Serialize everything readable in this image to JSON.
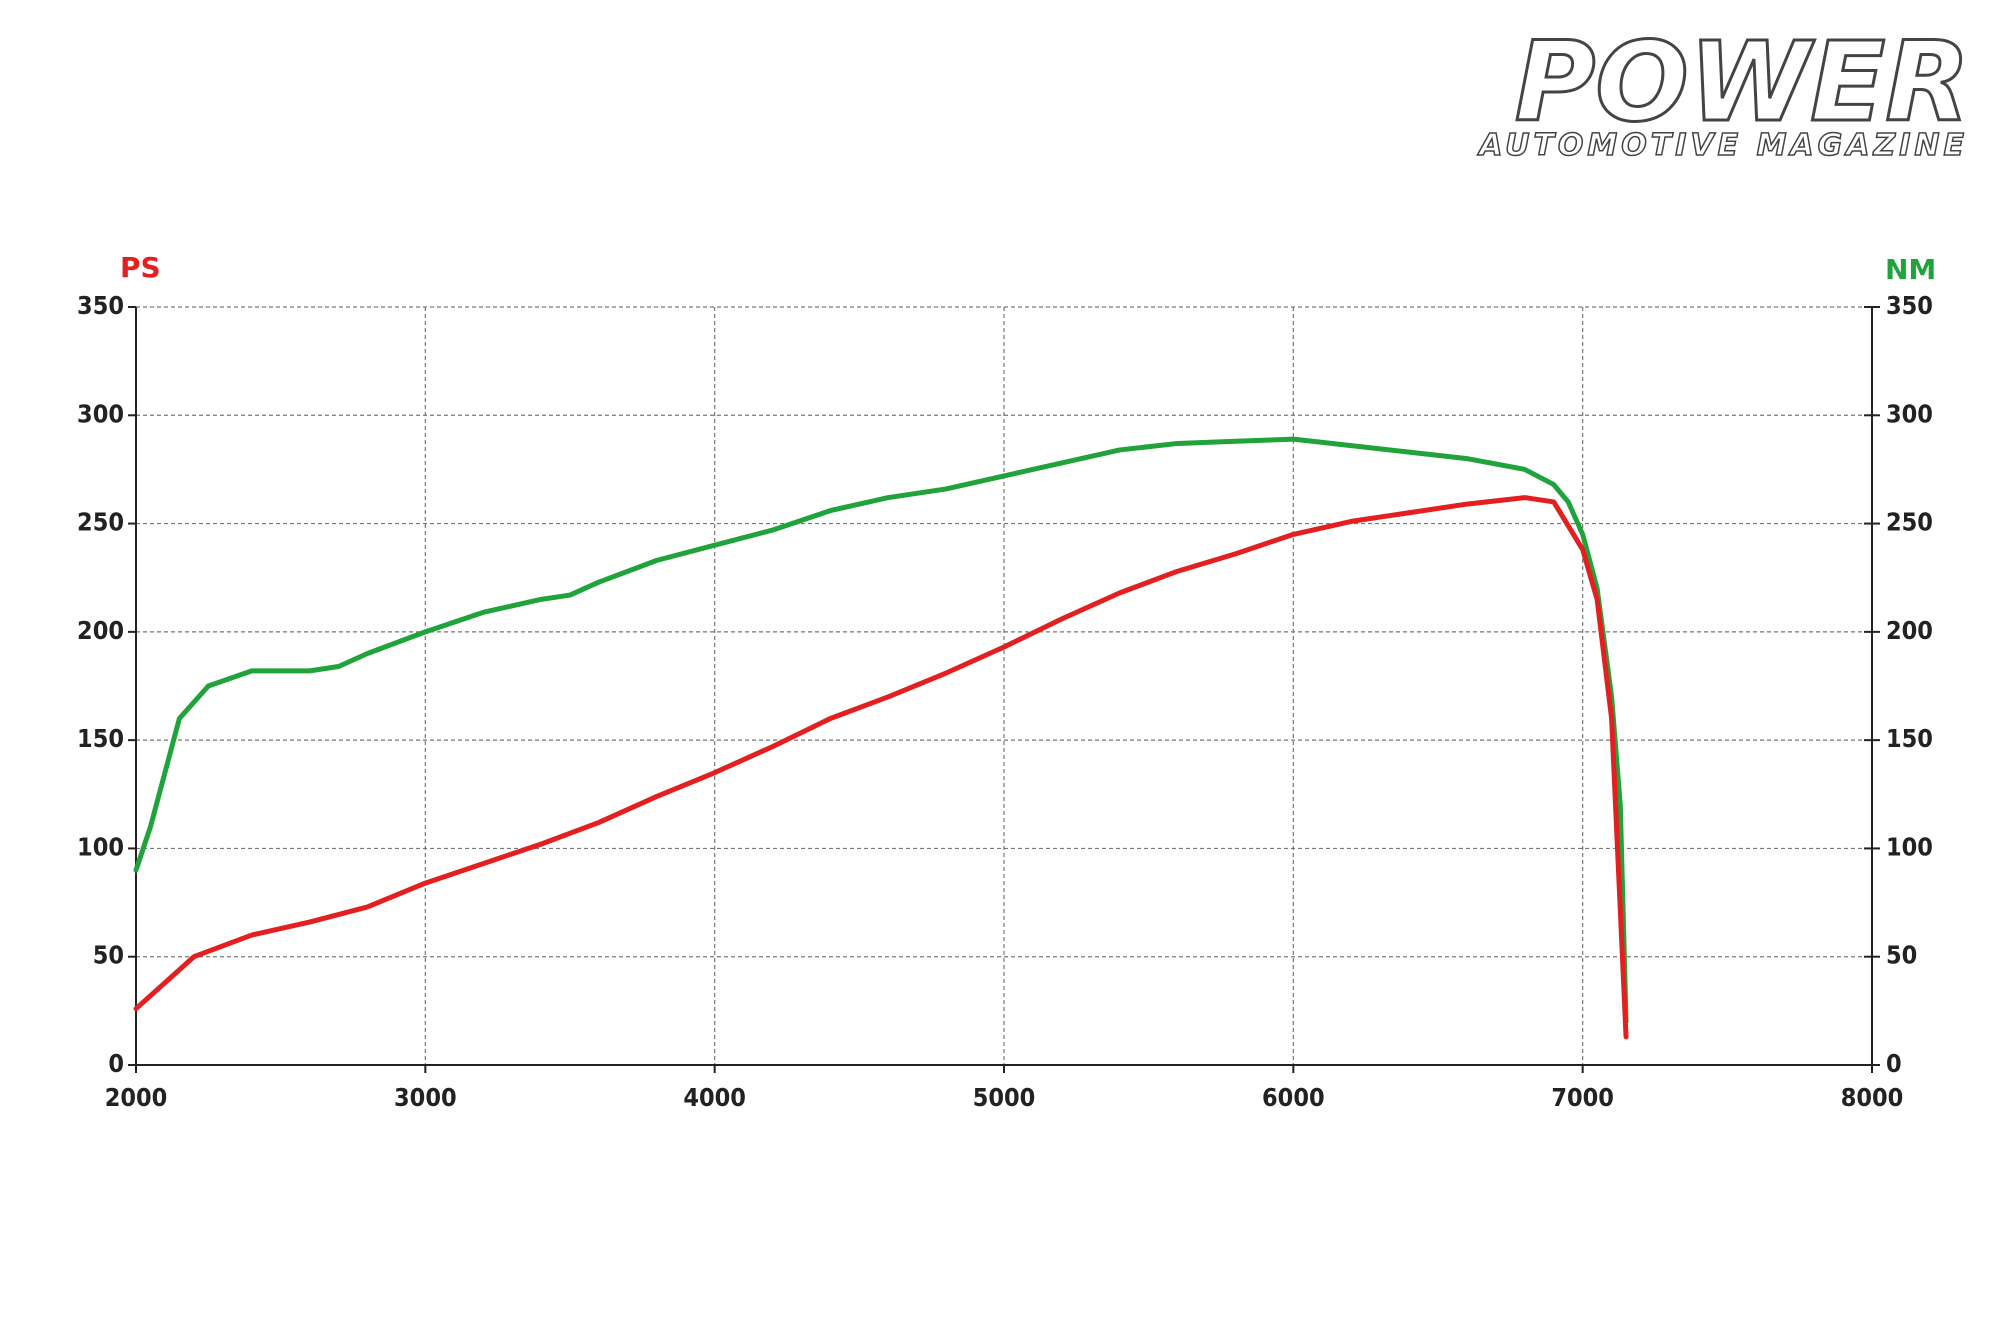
{
  "brand": {
    "name": "POWER",
    "tagline": "AUTOMOTIVE MAGAZINE"
  },
  "chart_data": {
    "type": "line",
    "ylabel": "PS",
    "y2label": "NM",
    "xlim": [
      2000,
      8000
    ],
    "xticks": [
      2000,
      3000,
      4000,
      5000,
      6000,
      7000,
      8000
    ],
    "ylim": [
      0,
      350
    ],
    "yticks": [
      0,
      50,
      100,
      150,
      200,
      250,
      300,
      350
    ],
    "y2lim": [
      0,
      350
    ],
    "y2ticks": [
      0,
      50,
      100,
      150,
      200,
      250,
      300,
      350
    ],
    "grid": true,
    "series": [
      {
        "name": "PS",
        "color": "#e3201f",
        "x": [
          2000,
          2100,
          2200,
          2400,
          2600,
          2800,
          3000,
          3200,
          3400,
          3600,
          3800,
          4000,
          4200,
          4400,
          4600,
          4800,
          5000,
          5200,
          5400,
          5600,
          5800,
          6000,
          6200,
          6400,
          6600,
          6800,
          6900,
          7000,
          7050,
          7100,
          7150
        ],
        "values": [
          26,
          38,
          50,
          60,
          66,
          73,
          84,
          93,
          102,
          112,
          124,
          135,
          147,
          160,
          170,
          181,
          193,
          206,
          218,
          228,
          236,
          245,
          251,
          255,
          259,
          262,
          260,
          238,
          215,
          160,
          13
        ]
      },
      {
        "name": "NM",
        "color": "#1fa33a",
        "axis": "y2",
        "x": [
          2000,
          2050,
          2150,
          2250,
          2400,
          2600,
          2700,
          2800,
          3000,
          3200,
          3400,
          3500,
          3600,
          3800,
          4000,
          4200,
          4400,
          4600,
          4800,
          5000,
          5200,
          5400,
          5600,
          5800,
          6000,
          6200,
          6400,
          6600,
          6800,
          6900,
          6950,
          7000,
          7050,
          7100,
          7130,
          7150
        ],
        "values": [
          90,
          110,
          160,
          175,
          182,
          182,
          184,
          190,
          200,
          209,
          215,
          217,
          223,
          233,
          240,
          247,
          256,
          262,
          266,
          272,
          278,
          284,
          287,
          288,
          289,
          286,
          283,
          280,
          275,
          268,
          260,
          245,
          220,
          170,
          120,
          20
        ]
      }
    ]
  }
}
